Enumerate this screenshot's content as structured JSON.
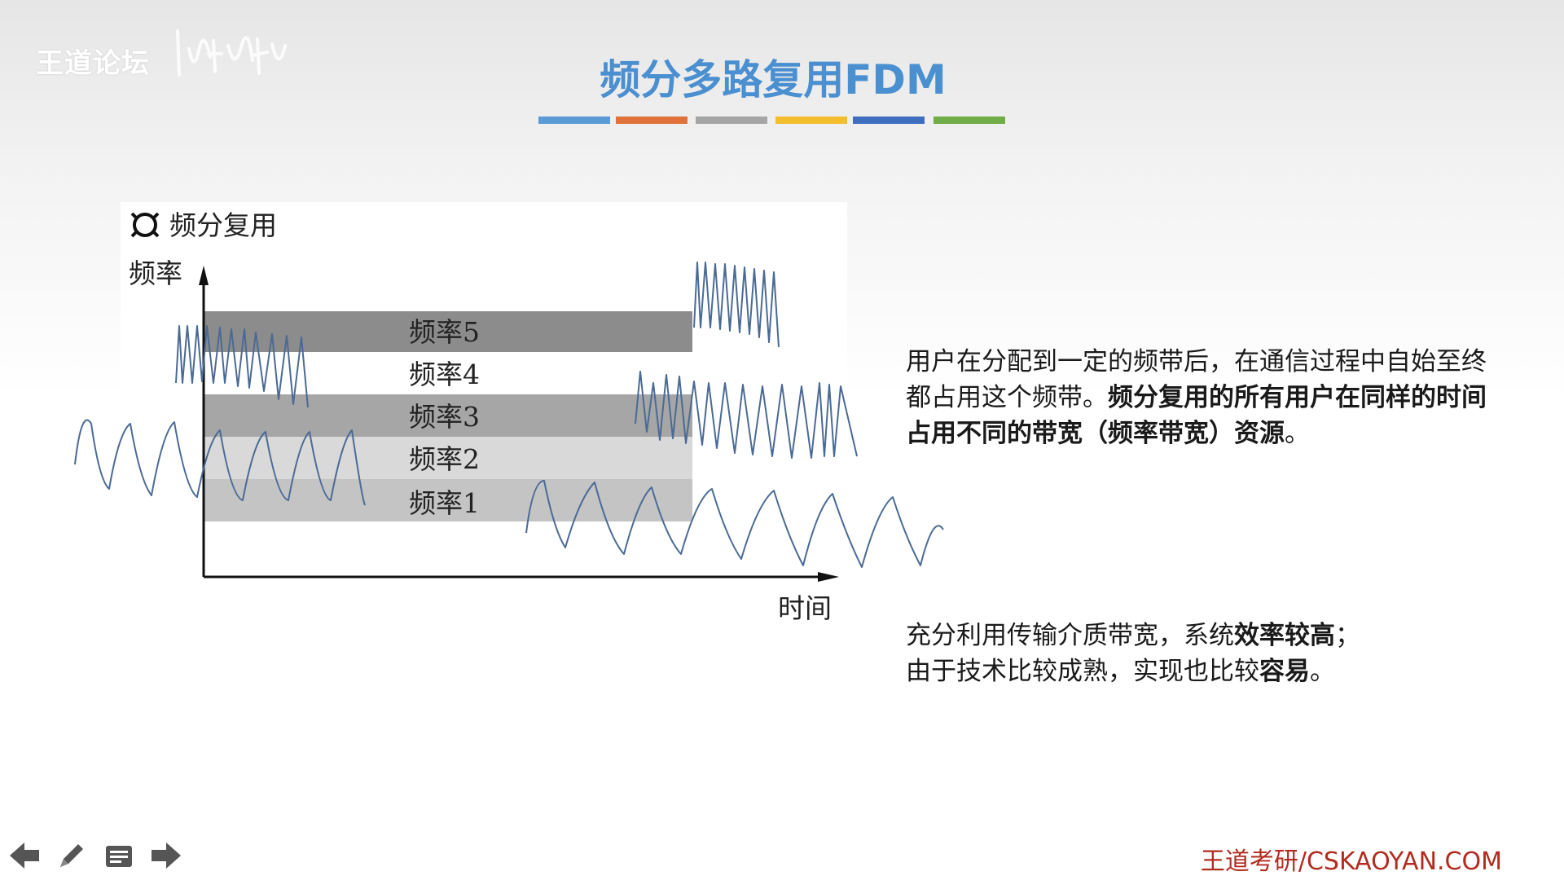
{
  "header": {
    "logo_text": "王道论坛",
    "title": "频分多路复用FDM",
    "color_bars": [
      "#5b9bd5",
      "#e0733a",
      "#a5a5a5",
      "#f2be2e",
      "#3f6dbf",
      "#70ad47"
    ]
  },
  "figure": {
    "caption": "频分复用",
    "y_axis_label": "频率",
    "x_axis_label": "时间",
    "bands": [
      {
        "label": "频率5",
        "color": "#8c8c8c"
      },
      {
        "label": "频率4",
        "color": "#ffffff"
      },
      {
        "label": "频率3",
        "color": "#a6a6a6"
      },
      {
        "label": "频率2",
        "color": "#d9d9d9"
      },
      {
        "label": "频率1",
        "color": "#c4c4c4"
      }
    ]
  },
  "description": {
    "p1_normal": "用户在分配到一定的频带后，在通信过程中自始至终都占用这个频带。",
    "p1_bold": "频分复用的所有用户在同样的时间占用不同的带宽（频率带宽）资源",
    "p1_end": "。",
    "p2_line1_normal": "充分利用传输介质带宽，系统",
    "p2_line1_bold": "效率较高",
    "p2_line1_end": "；",
    "p2_line2_normal": "由于技术比较成熟，实现也比较",
    "p2_line2_bold": "容易",
    "p2_line2_end": "。"
  },
  "footer": {
    "brand": "王道考研/CSKAOYAN.COM"
  },
  "nav": {
    "icons": [
      "arrow-left-icon",
      "pen-icon",
      "menu-icon",
      "arrow-right-icon"
    ]
  }
}
